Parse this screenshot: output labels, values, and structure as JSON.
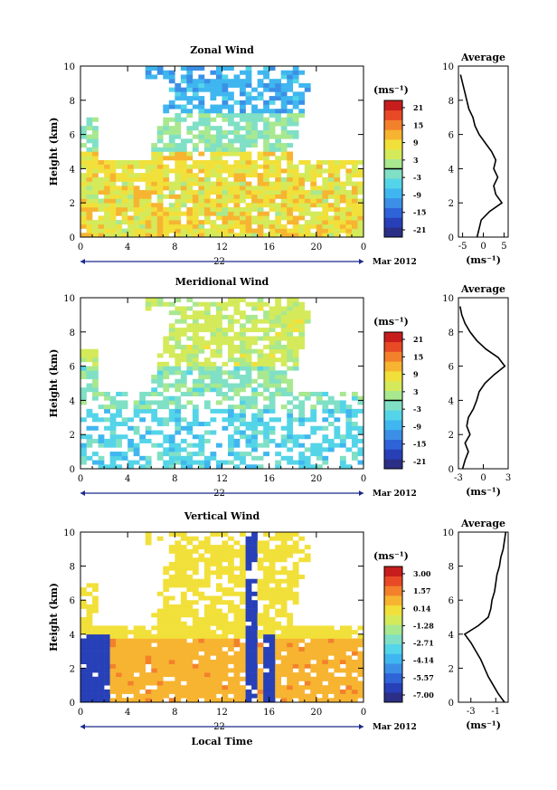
{
  "figure": {
    "time_axis_label": "Local Time",
    "date_label": "Mar 2012",
    "day_label": "22",
    "time_ticks": [
      "0",
      "4",
      "8",
      "12",
      "16",
      "20",
      "0"
    ],
    "height_ticks": [
      "0",
      "2",
      "4",
      "6",
      "8",
      "10"
    ],
    "ylabel": "Height (km)",
    "avg_title": "Average",
    "avg_unit": "(ms⁻¹)",
    "cbar_unit": "(ms⁻¹)"
  },
  "chart_data": [
    {
      "type": "heatmap",
      "title": "Zonal Wind",
      "xlabel": "Local Time",
      "ylabel": "Height (km)",
      "xlim": [
        0,
        24
      ],
      "ylim": [
        0,
        10
      ],
      "colorbar": {
        "unit": "(ms⁻¹)",
        "ticks": [
          "21",
          "15",
          "9",
          "3",
          "-3",
          "-9",
          "-15",
          "-21"
        ],
        "range": [
          -24,
          24
        ],
        "zero_line": true
      },
      "average_profile": {
        "title": "Average",
        "xlabel": "(ms⁻¹)",
        "xlim": [
          -6,
          6
        ],
        "xticks": [
          "-5",
          "0",
          "5"
        ],
        "yticks": [
          "0",
          "2",
          "4",
          "6",
          "8",
          "10"
        ],
        "height": [
          0,
          0.5,
          1,
          1.5,
          2,
          2.5,
          3,
          3.5,
          4,
          4.5,
          5,
          5.5,
          6,
          6.5,
          7,
          7.5,
          8,
          8.5,
          9,
          9.5
        ],
        "value": [
          -1.5,
          -1,
          -0.5,
          1.5,
          4.5,
          3,
          2.5,
          3.5,
          2.5,
          3,
          2,
          0.5,
          -1,
          -2,
          -2.5,
          -3.5,
          -4,
          -4.5,
          -5,
          -5.5
        ]
      }
    },
    {
      "type": "heatmap",
      "title": "Meridional Wind",
      "xlabel": "Local Time",
      "ylabel": "Height (km)",
      "xlim": [
        0,
        24
      ],
      "ylim": [
        0,
        10
      ],
      "colorbar": {
        "unit": "(ms⁻¹)",
        "ticks": [
          "21",
          "15",
          "9",
          "3",
          "-3",
          "-9",
          "-15",
          "-21"
        ],
        "range": [
          -24,
          24
        ],
        "zero_line": true
      },
      "average_profile": {
        "title": "Average",
        "xlabel": "(ms⁻¹)",
        "xlim": [
          -3,
          3
        ],
        "xticks": [
          "-3",
          "0",
          "3"
        ],
        "yticks": [
          "0",
          "2",
          "4",
          "6",
          "8",
          "10"
        ],
        "height": [
          0,
          0.5,
          1,
          1.5,
          2,
          2.5,
          3,
          3.5,
          4,
          4.5,
          5,
          5.5,
          6,
          6.5,
          7,
          7.5,
          8,
          8.5,
          9,
          9.5
        ],
        "value": [
          -2.5,
          -2.2,
          -1.8,
          -2.2,
          -1.6,
          -2,
          -1.8,
          -1.2,
          -0.8,
          -0.5,
          0.2,
          1.3,
          2.6,
          1.8,
          0.3,
          -0.8,
          -1.6,
          -2.2,
          -2.6,
          -2.8
        ]
      }
    },
    {
      "type": "heatmap",
      "title": "Vertical Wind",
      "xlabel": "Local Time",
      "ylabel": "Height (km)",
      "xlim": [
        0,
        24
      ],
      "ylim": [
        0,
        10
      ],
      "colorbar": {
        "unit": "(ms⁻¹)",
        "ticks": [
          "3.00",
          "1.57",
          "0.14",
          "-1.28",
          "-2.71",
          "-4.14",
          "-5.57",
          "-7.00"
        ],
        "range": [
          -8,
          3.5
        ],
        "zero_line": false
      },
      "average_profile": {
        "title": "Average",
        "xlabel": "(ms⁻¹)",
        "xlim": [
          -4,
          0
        ],
        "xticks": [
          "-3",
          "-1"
        ],
        "yticks": [
          "0",
          "2",
          "4",
          "6",
          "8",
          "10"
        ],
        "height": [
          0,
          0.5,
          1,
          1.5,
          2,
          2.5,
          3,
          3.5,
          4,
          4.5,
          5,
          5.5,
          6,
          6.5,
          7,
          7.5,
          8,
          8.5,
          9,
          9.5,
          10
        ],
        "value": [
          -0.3,
          -0.8,
          -1.2,
          -1.6,
          -1.9,
          -2.2,
          -2.6,
          -3.0,
          -3.5,
          -2.4,
          -1.6,
          -1.4,
          -1.3,
          -1.1,
          -1.0,
          -0.9,
          -0.7,
          -0.6,
          -0.4,
          -0.3,
          -0.2
        ]
      }
    }
  ]
}
